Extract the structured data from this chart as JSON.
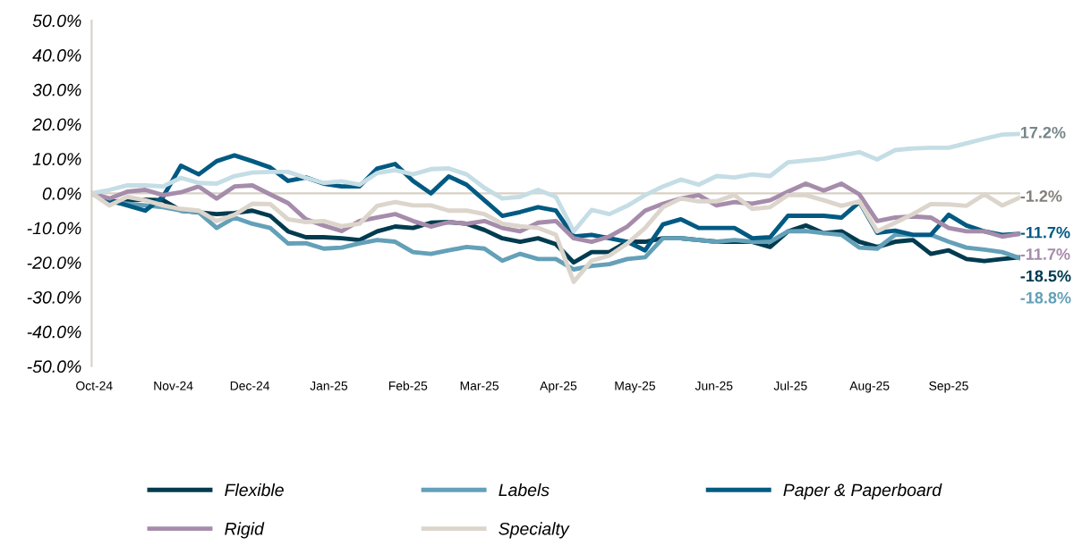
{
  "chart_data": {
    "type": "line",
    "x": [
      "2024-09-30",
      "2024-10-07",
      "2024-10-14",
      "2024-10-21",
      "2024-10-28",
      "2024-11-04",
      "2024-11-11",
      "2024-11-18",
      "2024-11-25",
      "2024-12-02",
      "2024-12-09",
      "2024-12-16",
      "2024-12-23",
      "2024-12-30",
      "2025-01-06",
      "2025-01-13",
      "2025-01-20",
      "2025-01-27",
      "2025-02-03",
      "2025-02-10",
      "2025-02-17",
      "2025-02-24",
      "2025-03-03",
      "2025-03-10",
      "2025-03-17",
      "2025-03-24",
      "2025-03-31",
      "2025-04-07",
      "2025-04-14",
      "2025-04-21",
      "2025-04-28",
      "2025-05-05",
      "2025-05-12",
      "2025-05-19",
      "2025-05-26",
      "2025-06-02",
      "2025-06-09",
      "2025-06-16",
      "2025-06-23",
      "2025-06-30",
      "2025-07-07",
      "2025-07-14",
      "2025-07-21",
      "2025-07-28",
      "2025-08-04",
      "2025-08-11",
      "2025-08-18",
      "2025-08-25",
      "2025-09-01",
      "2025-09-08",
      "2025-09-15",
      "2025-09-22",
      "2025-09-29"
    ],
    "series": [
      {
        "name": "Flexible",
        "color": "#003b4f",
        "values": [
          0,
          -2.5,
          -2,
          -1.8,
          -2,
          -5,
          -5.5,
          -6,
          -5.7,
          -5,
          -6.5,
          -11,
          -12.7,
          -12.7,
          -13,
          -13.5,
          -11,
          -9.6,
          -10,
          -8.5,
          -8.3,
          -8.8,
          -10.6,
          -13,
          -14,
          -13,
          -14.7,
          -20,
          -17,
          -17,
          -14,
          -14,
          -13,
          -13,
          -13.5,
          -14,
          -14,
          -14,
          -15.5,
          -11,
          -9.3,
          -11.5,
          -11,
          -14,
          -15.5,
          -14,
          -13.5,
          -17.5,
          -16.5,
          -19,
          -19.6,
          -19,
          -18.5
        ],
        "value_labels": [
          null,
          null,
          null,
          null,
          null,
          null,
          null,
          null,
          null,
          null,
          null,
          null,
          null,
          null,
          null,
          null,
          null,
          null,
          null,
          null,
          null,
          null,
          null,
          null,
          null,
          null,
          null,
          null,
          null,
          null,
          null,
          null,
          null,
          null,
          null,
          null,
          null,
          null,
          null,
          null,
          null,
          null,
          null,
          null,
          null,
          null,
          null,
          null,
          null,
          null,
          null,
          null,
          "-18.5%"
        ]
      },
      {
        "name": "Labels",
        "color": "#64a0b8",
        "values": [
          0,
          -2.5,
          -3,
          -3.5,
          -4,
          -5,
          -5.5,
          -10,
          -7,
          -8.8,
          -10,
          -14.5,
          -14.4,
          -16,
          -15.7,
          -14.5,
          -13.5,
          -14,
          -17,
          -17.5,
          -16.5,
          -15.5,
          -16,
          -19.5,
          -17.5,
          -19,
          -19,
          -22,
          -21,
          -20.5,
          -19,
          -18.5,
          -13,
          -13,
          -13.5,
          -14,
          -13.5,
          -14,
          -14,
          -11,
          -10.9,
          -11.5,
          -12,
          -15.7,
          -16,
          -12,
          -12,
          -12,
          -14,
          -15.7,
          -16.3,
          -17,
          -18.8
        ],
        "value_labels": [
          null,
          null,
          null,
          null,
          null,
          null,
          null,
          null,
          null,
          null,
          null,
          null,
          null,
          null,
          null,
          null,
          null,
          null,
          null,
          null,
          null,
          null,
          null,
          null,
          null,
          null,
          null,
          null,
          null,
          null,
          null,
          null,
          null,
          null,
          null,
          null,
          null,
          null,
          null,
          null,
          null,
          null,
          null,
          null,
          null,
          null,
          null,
          null,
          null,
          null,
          null,
          null,
          "-18.8%"
        ]
      },
      {
        "name": "Paper & Paperboard",
        "color": "#005a82",
        "values": [
          0,
          -2,
          -3.5,
          -5,
          -1,
          8,
          5.5,
          9.3,
          11,
          9.3,
          7.5,
          3.6,
          4.6,
          2.8,
          2,
          2,
          7.2,
          8.5,
          3.6,
          0,
          4.9,
          2.5,
          -2,
          -6.5,
          -5.4,
          -4,
          -5,
          -12.5,
          -12,
          -13,
          -14,
          -16.5,
          -9,
          -7.5,
          -10,
          -10,
          -10,
          -13,
          -12.7,
          -6.5,
          -6.5,
          -6.5,
          -7,
          -2.5,
          -11.4,
          -10.8,
          -12,
          -12,
          -6.2,
          -9.3,
          -11,
          -12,
          -11.7
        ],
        "value_labels": [
          null,
          null,
          null,
          null,
          null,
          null,
          null,
          null,
          null,
          null,
          null,
          null,
          null,
          null,
          null,
          null,
          null,
          null,
          null,
          null,
          null,
          null,
          null,
          null,
          null,
          null,
          null,
          null,
          null,
          null,
          null,
          null,
          null,
          null,
          null,
          null,
          null,
          null,
          null,
          null,
          null,
          null,
          null,
          null,
          null,
          null,
          null,
          null,
          null,
          null,
          null,
          null,
          "-11.7%"
        ]
      },
      {
        "name": "Rigid",
        "color": "#a68cab",
        "values": [
          0,
          -1.5,
          0.5,
          1,
          -0.5,
          0.3,
          2,
          -1.5,
          2,
          2.3,
          -0.3,
          -2.8,
          -7.5,
          -9.3,
          -10.9,
          -8,
          -7,
          -6,
          -8,
          -9.6,
          -8.3,
          -8.8,
          -8,
          -10,
          -11,
          -8.5,
          -8,
          -13,
          -14,
          -12.5,
          -9.6,
          -5,
          -3,
          -1.5,
          -0.5,
          -3.5,
          -2.5,
          -3,
          -2,
          0.5,
          2.8,
          0.8,
          2.8,
          -0.3,
          -8,
          -7,
          -6.7,
          -7,
          -10,
          -11,
          -11,
          -12.5,
          -11.7
        ],
        "value_labels": [
          null,
          null,
          null,
          null,
          null,
          null,
          null,
          null,
          null,
          null,
          null,
          null,
          null,
          null,
          null,
          null,
          null,
          null,
          null,
          null,
          null,
          null,
          null,
          null,
          null,
          null,
          null,
          null,
          null,
          null,
          null,
          null,
          null,
          null,
          null,
          null,
          null,
          null,
          null,
          null,
          null,
          null,
          null,
          null,
          null,
          null,
          null,
          null,
          null,
          null,
          null,
          null,
          "-11.7%"
        ]
      },
      {
        "color": "#c5dde5",
        "values": [
          0,
          1,
          2.3,
          2.3,
          2,
          4.5,
          3,
          2.8,
          5,
          6,
          6.2,
          6.2,
          4.5,
          3,
          3.5,
          2.5,
          5.9,
          6.7,
          5.5,
          7,
          7.2,
          5.5,
          1.6,
          -1.5,
          -1,
          1,
          -1,
          -11,
          -4.8,
          -6,
          -3.6,
          -0.5,
          2,
          4,
          2.5,
          5,
          4.6,
          5.5,
          5,
          9,
          9.5,
          10,
          11,
          11.9,
          9.8,
          12.5,
          13,
          13.2,
          13.2,
          14.5,
          15.8,
          17,
          17.2
        ],
        "value_labels": [
          null,
          null,
          null,
          null,
          null,
          null,
          null,
          null,
          null,
          null,
          null,
          null,
          null,
          null,
          null,
          null,
          null,
          null,
          null,
          null,
          null,
          null,
          null,
          null,
          null,
          null,
          null,
          null,
          null,
          null,
          null,
          null,
          null,
          null,
          null,
          null,
          null,
          null,
          null,
          null,
          null,
          null,
          null,
          null,
          null,
          null,
          null,
          null,
          null,
          null,
          null,
          null,
          "17.2%"
        ]
      },
      {
        "name": "Specialty",
        "color": "#dcd5cc",
        "values": [
          0,
          -3.5,
          -1,
          -2,
          -3.5,
          -4.5,
          -5,
          -8,
          -6.2,
          -3,
          -3.1,
          -7.5,
          -8.3,
          -8,
          -9.5,
          -8.8,
          -3.6,
          -2.5,
          -3.5,
          -3.5,
          -5,
          -5,
          -6,
          -8.8,
          -9.5,
          -10,
          -12,
          -25.6,
          -19.5,
          -18,
          -14.5,
          -10,
          -4,
          -1.5,
          -2.3,
          -2.3,
          -0.5,
          -4.5,
          -4,
          -0.5,
          -0.5,
          -2,
          -3.6,
          -2.3,
          -11,
          -8.5,
          -6,
          -3.1,
          -3.2,
          -3.6,
          -0.3,
          -3.5,
          -1.2
        ],
        "value_labels": [
          null,
          null,
          null,
          null,
          null,
          null,
          null,
          null,
          null,
          null,
          null,
          null,
          null,
          null,
          null,
          null,
          null,
          null,
          null,
          null,
          null,
          null,
          null,
          null,
          null,
          null,
          null,
          null,
          null,
          null,
          null,
          null,
          null,
          null,
          null,
          null,
          null,
          null,
          null,
          null,
          null,
          null,
          null,
          null,
          null,
          null,
          null,
          null,
          null,
          null,
          null,
          null,
          "-1.2%"
        ]
      }
    ],
    "xlim": [
      "2024-09-30",
      "2025-09-29"
    ],
    "xticks": [
      {
        "value": "2024-10-01",
        "label": "Oct-24"
      },
      {
        "value": "2024-11-01",
        "label": "Nov-24"
      },
      {
        "value": "2024-12-01",
        "label": "Dec-24"
      },
      {
        "value": "2025-01-01",
        "label": "Jan-25"
      },
      {
        "value": "2025-02-01",
        "label": "Feb-25"
      },
      {
        "value": "2025-03-01",
        "label": "Mar-25"
      },
      {
        "value": "2025-04-01",
        "label": "Apr-25"
      },
      {
        "value": "2025-05-01",
        "label": "May-25"
      },
      {
        "value": "2025-06-01",
        "label": "Jun-25"
      },
      {
        "value": "2025-07-01",
        "label": "Jul-25"
      },
      {
        "value": "2025-08-01",
        "label": "Aug-25"
      },
      {
        "value": "2025-09-01",
        "label": "Sep-25"
      }
    ],
    "ylim": [
      -50,
      50
    ],
    "yticks": [
      {
        "value": -50,
        "label": "-50.0%"
      },
      {
        "value": -40,
        "label": "-40.0%"
      },
      {
        "value": -30,
        "label": "-30.0%"
      },
      {
        "value": -20,
        "label": "-20.0%"
      },
      {
        "value": -10,
        "label": "-10.0%"
      },
      {
        "value": 0,
        "label": "0.0%"
      },
      {
        "value": 10,
        "label": "10.0%"
      },
      {
        "value": 20,
        "label": "20.0%"
      },
      {
        "value": 30,
        "label": "30.0%"
      },
      {
        "value": 40,
        "label": "40.0%"
      },
      {
        "value": 50,
        "label": "50.0%"
      }
    ],
    "ref_lines": [
      {
        "axis": "y",
        "value": 0,
        "color": "#d9d0c4"
      }
    ],
    "grid": false,
    "legend": "bottom",
    "marker": "none",
    "line_style": "solid"
  }
}
